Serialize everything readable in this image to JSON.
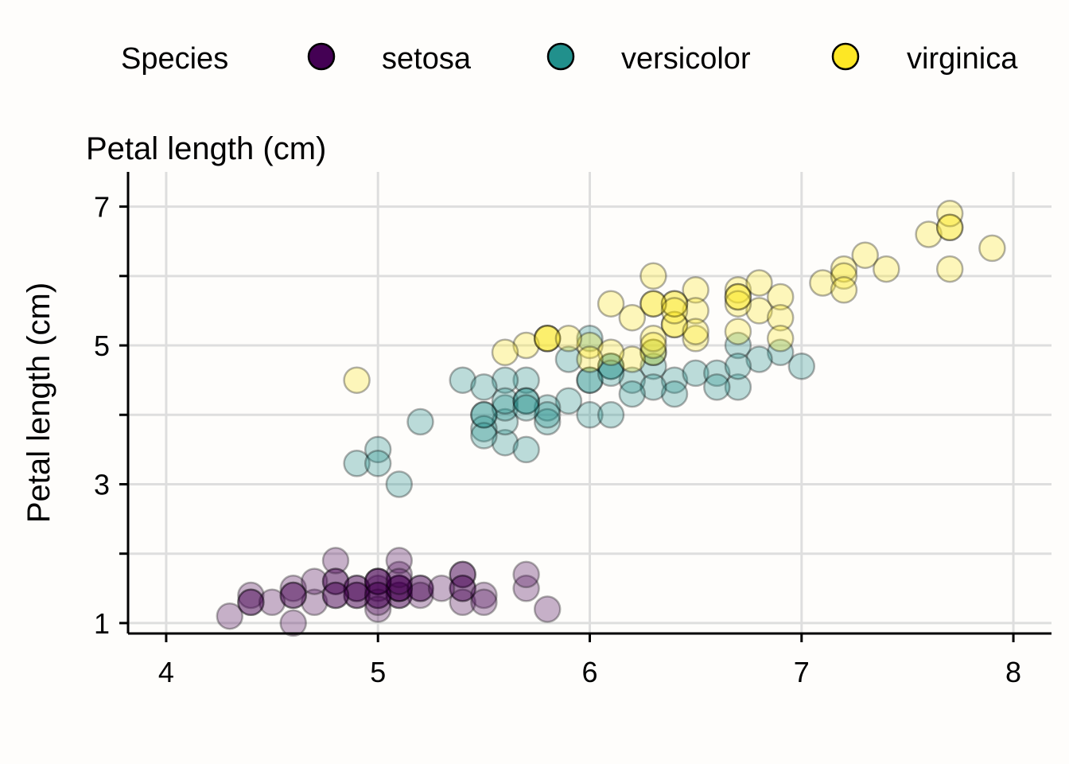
{
  "chart_data": {
    "type": "scatter",
    "title": "Petal length (cm)",
    "xlabel": "",
    "ylabel": "Petal length (cm)",
    "xlim": [
      3.82,
      8.18
    ],
    "ylim": [
      0.85,
      7.5
    ],
    "x_ticks": [
      4,
      5,
      6,
      7,
      8
    ],
    "y_ticks": [
      1,
      3,
      5,
      7
    ],
    "y_minor_gridlines": [
      2,
      4,
      6
    ],
    "grid": true,
    "legend": {
      "title": "Species",
      "placement": "top",
      "entries": [
        "setosa",
        "versicolor",
        "virginica"
      ]
    },
    "point_alpha": 0.3,
    "series": [
      {
        "name": "setosa",
        "color": "#440154",
        "points": [
          [
            5.1,
            1.4
          ],
          [
            4.9,
            1.4
          ],
          [
            4.7,
            1.3
          ],
          [
            4.6,
            1.5
          ],
          [
            5.0,
            1.4
          ],
          [
            5.4,
            1.7
          ],
          [
            4.6,
            1.4
          ],
          [
            5.0,
            1.5
          ],
          [
            4.4,
            1.4
          ],
          [
            4.9,
            1.5
          ],
          [
            5.4,
            1.5
          ],
          [
            4.8,
            1.6
          ],
          [
            4.8,
            1.4
          ],
          [
            4.3,
            1.1
          ],
          [
            5.8,
            1.2
          ],
          [
            5.7,
            1.5
          ],
          [
            5.4,
            1.3
          ],
          [
            5.1,
            1.4
          ],
          [
            5.7,
            1.7
          ],
          [
            5.1,
            1.5
          ],
          [
            5.4,
            1.7
          ],
          [
            5.1,
            1.5
          ],
          [
            4.6,
            1.0
          ],
          [
            5.1,
            1.7
          ],
          [
            4.8,
            1.9
          ],
          [
            5.0,
            1.6
          ],
          [
            5.0,
            1.6
          ],
          [
            5.2,
            1.5
          ],
          [
            5.2,
            1.4
          ],
          [
            4.7,
            1.6
          ],
          [
            4.8,
            1.6
          ],
          [
            5.4,
            1.5
          ],
          [
            5.2,
            1.5
          ],
          [
            5.5,
            1.4
          ],
          [
            4.9,
            1.5
          ],
          [
            5.0,
            1.2
          ],
          [
            5.5,
            1.3
          ],
          [
            4.9,
            1.4
          ],
          [
            4.4,
            1.3
          ],
          [
            5.1,
            1.5
          ],
          [
            5.0,
            1.3
          ],
          [
            4.5,
            1.3
          ],
          [
            4.4,
            1.3
          ],
          [
            5.0,
            1.6
          ],
          [
            5.1,
            1.9
          ],
          [
            4.8,
            1.4
          ],
          [
            5.1,
            1.6
          ],
          [
            4.6,
            1.4
          ],
          [
            5.3,
            1.5
          ],
          [
            5.0,
            1.4
          ]
        ]
      },
      {
        "name": "versicolor",
        "color": "#21908C",
        "points": [
          [
            7.0,
            4.7
          ],
          [
            6.4,
            4.5
          ],
          [
            6.9,
            4.9
          ],
          [
            5.5,
            4.0
          ],
          [
            6.5,
            4.6
          ],
          [
            5.7,
            4.5
          ],
          [
            6.3,
            4.7
          ],
          [
            4.9,
            3.3
          ],
          [
            6.6,
            4.6
          ],
          [
            5.2,
            3.9
          ],
          [
            5.0,
            3.5
          ],
          [
            5.9,
            4.2
          ],
          [
            6.0,
            4.0
          ],
          [
            6.1,
            4.7
          ],
          [
            5.6,
            3.6
          ],
          [
            6.7,
            4.4
          ],
          [
            5.6,
            4.5
          ],
          [
            5.8,
            4.1
          ],
          [
            6.2,
            4.5
          ],
          [
            5.6,
            3.9
          ],
          [
            5.9,
            4.8
          ],
          [
            6.1,
            4.0
          ],
          [
            6.3,
            4.9
          ],
          [
            6.1,
            4.7
          ],
          [
            6.4,
            4.3
          ],
          [
            6.6,
            4.4
          ],
          [
            6.8,
            4.8
          ],
          [
            6.7,
            5.0
          ],
          [
            6.0,
            4.5
          ],
          [
            5.7,
            3.5
          ],
          [
            5.5,
            3.8
          ],
          [
            5.5,
            3.7
          ],
          [
            5.8,
            3.9
          ],
          [
            6.0,
            5.1
          ],
          [
            5.4,
            4.5
          ],
          [
            6.0,
            4.5
          ],
          [
            6.7,
            4.7
          ],
          [
            6.3,
            4.4
          ],
          [
            5.6,
            4.1
          ],
          [
            5.5,
            4.0
          ],
          [
            5.5,
            4.4
          ],
          [
            6.1,
            4.6
          ],
          [
            5.8,
            4.0
          ],
          [
            5.0,
            3.3
          ],
          [
            5.6,
            4.2
          ],
          [
            5.7,
            4.2
          ],
          [
            5.7,
            4.2
          ],
          [
            6.2,
            4.3
          ],
          [
            5.1,
            3.0
          ],
          [
            5.7,
            4.1
          ]
        ]
      },
      {
        "name": "virginica",
        "color": "#FDE725",
        "points": [
          [
            6.3,
            6.0
          ],
          [
            5.8,
            5.1
          ],
          [
            7.1,
            5.9
          ],
          [
            6.3,
            5.6
          ],
          [
            6.5,
            5.8
          ],
          [
            7.6,
            6.6
          ],
          [
            4.9,
            4.5
          ],
          [
            7.3,
            6.3
          ],
          [
            6.7,
            5.8
          ],
          [
            7.2,
            6.1
          ],
          [
            6.5,
            5.1
          ],
          [
            6.4,
            5.3
          ],
          [
            6.8,
            5.5
          ],
          [
            5.7,
            5.0
          ],
          [
            5.8,
            5.1
          ],
          [
            6.4,
            5.3
          ],
          [
            6.5,
            5.5
          ],
          [
            7.7,
            6.7
          ],
          [
            7.7,
            6.9
          ],
          [
            6.0,
            5.0
          ],
          [
            6.9,
            5.7
          ],
          [
            5.6,
            4.9
          ],
          [
            7.7,
            6.7
          ],
          [
            6.3,
            4.9
          ],
          [
            6.7,
            5.7
          ],
          [
            7.2,
            6.0
          ],
          [
            6.2,
            4.8
          ],
          [
            6.1,
            4.9
          ],
          [
            6.4,
            5.6
          ],
          [
            7.2,
            5.8
          ],
          [
            7.4,
            6.1
          ],
          [
            7.9,
            6.4
          ],
          [
            6.4,
            5.6
          ],
          [
            6.3,
            5.1
          ],
          [
            6.1,
            5.6
          ],
          [
            7.7,
            6.1
          ],
          [
            6.3,
            5.6
          ],
          [
            6.4,
            5.5
          ],
          [
            6.0,
            4.8
          ],
          [
            6.9,
            5.4
          ],
          [
            6.7,
            5.6
          ],
          [
            6.9,
            5.1
          ],
          [
            5.8,
            5.1
          ],
          [
            6.8,
            5.9
          ],
          [
            6.7,
            5.7
          ],
          [
            6.7,
            5.2
          ],
          [
            6.3,
            5.0
          ],
          [
            6.5,
            5.2
          ],
          [
            6.2,
            5.4
          ],
          [
            5.9,
            5.1
          ]
        ]
      }
    ]
  }
}
